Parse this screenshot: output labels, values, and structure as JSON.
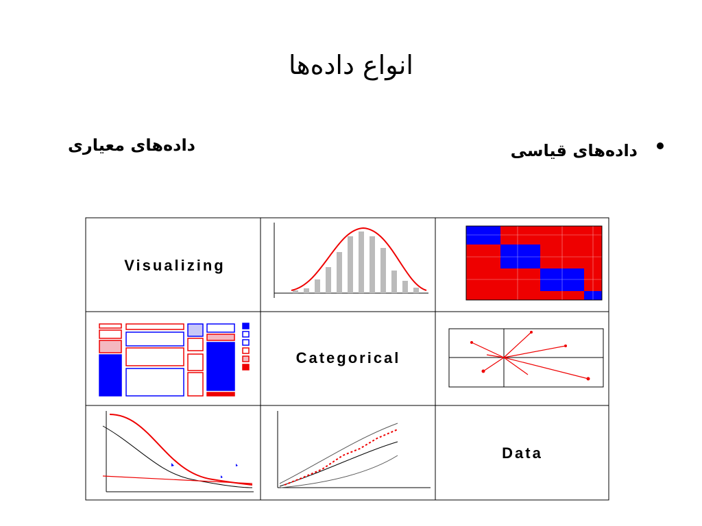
{
  "header": {
    "title": "انواع داده‌ها"
  },
  "bullets": {
    "right": "داده‌های قیاسی",
    "left": "داده‌های معیاری"
  },
  "grid": {
    "cells": [
      "Visualizing",
      "Categorical",
      "Data"
    ]
  }
}
